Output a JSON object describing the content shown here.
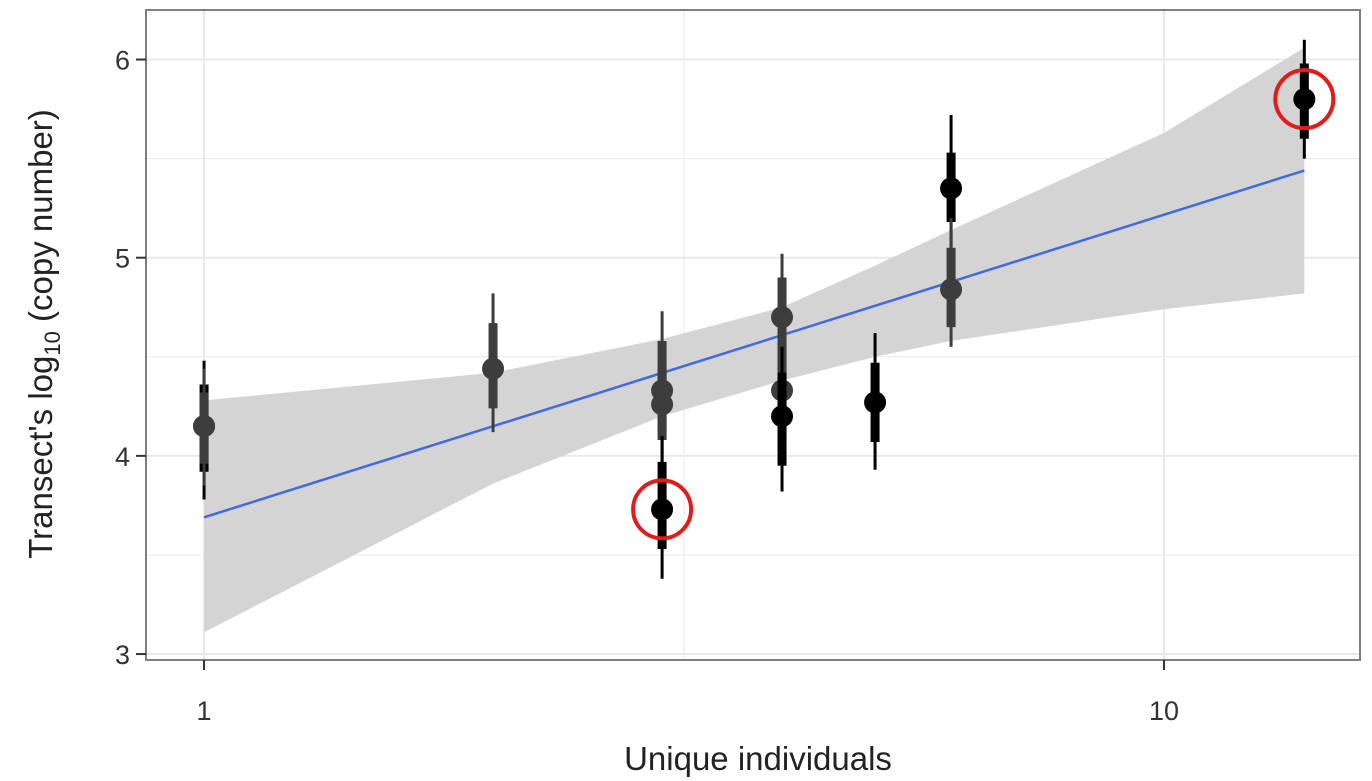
{
  "chart_data": {
    "type": "scatter",
    "title": "",
    "xlabel": "Unique individuals",
    "ylabel": {
      "prefix": "Transect's log",
      "subscript": "10",
      "suffix": " (copy number)"
    },
    "x_scale": "log10",
    "xlim": [
      0.87,
      16
    ],
    "ylim": [
      2.97,
      6.25
    ],
    "x_ticks": [
      {
        "value": 1,
        "label": "1"
      },
      {
        "value": 10,
        "label": "10"
      }
    ],
    "y_ticks": [
      {
        "value": 3,
        "label": "3"
      },
      {
        "value": 4,
        "label": "4"
      },
      {
        "value": 5,
        "label": "5"
      },
      {
        "value": 6,
        "label": "6"
      }
    ],
    "grid": true,
    "points": [
      {
        "x": 1,
        "y": 4.15,
        "low80": 3.92,
        "high80": 4.36,
        "low95": 3.78,
        "high95": 4.48,
        "shade": "dark",
        "highlighted": false
      },
      {
        "x": 1,
        "y": 4.15,
        "low80": 3.96,
        "high80": 4.32,
        "low95": 3.85,
        "high95": 4.44,
        "shade": "gray",
        "highlighted": false
      },
      {
        "x": 2,
        "y": 4.44,
        "low80": 4.24,
        "high80": 4.67,
        "low95": 4.12,
        "high95": 4.82,
        "shade": "gray",
        "highlighted": false
      },
      {
        "x": 3,
        "y": 4.33,
        "low80": 4.12,
        "high80": 4.58,
        "low95": 3.98,
        "high95": 4.73,
        "shade": "gray",
        "highlighted": false
      },
      {
        "x": 3,
        "y": 4.26,
        "low80": 4.08,
        "high80": 4.45,
        "low95": 3.95,
        "high95": 4.58,
        "shade": "gray",
        "highlighted": false
      },
      {
        "x": 3,
        "y": 3.73,
        "low80": 3.53,
        "high80": 3.97,
        "low95": 3.38,
        "high95": 4.1,
        "shade": "dark",
        "highlighted": true
      },
      {
        "x": 4,
        "y": 4.7,
        "low80": 4.43,
        "high80": 4.9,
        "low95": 4.25,
        "high95": 5.02,
        "shade": "gray",
        "highlighted": false
      },
      {
        "x": 4,
        "y": 4.33,
        "low80": 4.1,
        "high80": 4.58,
        "low95": 3.95,
        "high95": 4.73,
        "shade": "gray",
        "highlighted": false
      },
      {
        "x": 4,
        "y": 4.2,
        "low80": 3.95,
        "high80": 4.42,
        "low95": 3.82,
        "high95": 4.55,
        "shade": "dark",
        "highlighted": false
      },
      {
        "x": 5,
        "y": 4.27,
        "low80": 4.07,
        "high80": 4.47,
        "low95": 3.93,
        "high95": 4.62,
        "shade": "dark",
        "highlighted": false
      },
      {
        "x": 6,
        "y": 5.35,
        "low80": 5.18,
        "high80": 5.53,
        "low95": 5.05,
        "high95": 5.72,
        "shade": "dark",
        "highlighted": false
      },
      {
        "x": 6,
        "y": 4.84,
        "low80": 4.65,
        "high80": 5.05,
        "low95": 4.55,
        "high95": 5.2,
        "shade": "gray",
        "highlighted": false
      },
      {
        "x": 14,
        "y": 5.8,
        "low80": 5.6,
        "high80": 5.98,
        "low95": 5.5,
        "high95": 6.1,
        "shade": "dark",
        "highlighted": true
      }
    ],
    "fit_line": {
      "x": [
        1,
        14
      ],
      "y": [
        3.69,
        5.44
      ],
      "color": "#4169e1"
    },
    "confidence_band": {
      "x": [
        1,
        2,
        3,
        4,
        5,
        6,
        10,
        14
      ],
      "lower": [
        3.11,
        3.86,
        4.2,
        4.38,
        4.5,
        4.58,
        4.74,
        4.82
      ],
      "upper": [
        4.28,
        4.42,
        4.59,
        4.75,
        4.96,
        5.14,
        5.63,
        6.06
      ],
      "color": "#d4d4d4"
    },
    "colors": {
      "point_dark": "#000000",
      "point_gray": "#3d3d3d",
      "highlight_circle": "#e21b1b",
      "grid": "#e9e9e9",
      "border": "#7f7f7f"
    }
  }
}
